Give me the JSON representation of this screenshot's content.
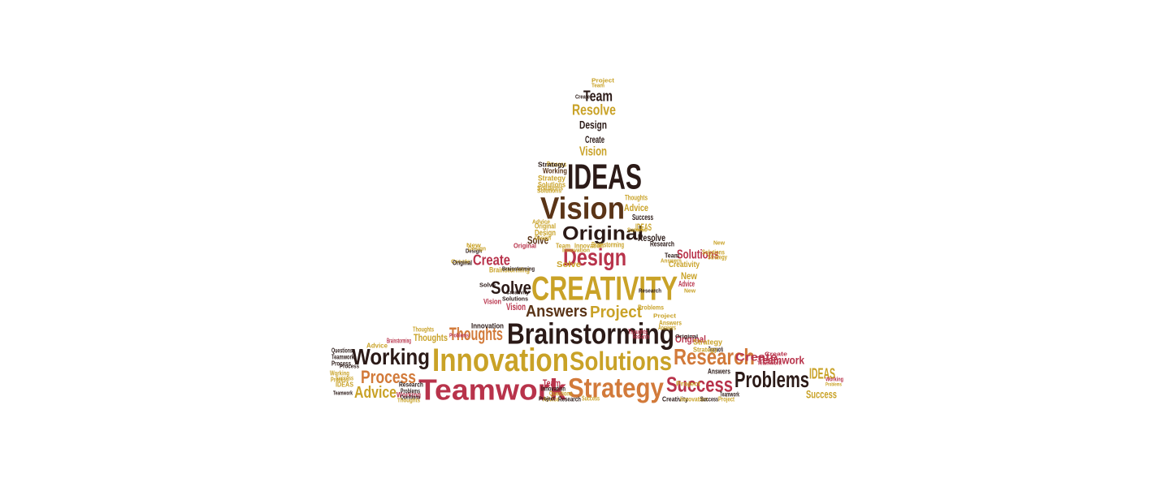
{
  "colors": {
    "dark": "#2b1a17",
    "brown": "#5a3417",
    "crimson": "#b8334b",
    "gold": "#c9a227",
    "orange": "#d27a3a",
    "red": "#c0392b"
  },
  "words": [
    {
      "text": "IDEAS",
      "color": "dark"
    },
    {
      "text": "Vision",
      "color": "brown"
    },
    {
      "text": "Original",
      "color": "dark"
    },
    {
      "text": "Design",
      "color": "crimson"
    },
    {
      "text": "CREATIVITY",
      "color": "gold"
    },
    {
      "text": "Answers",
      "color": "brown"
    },
    {
      "text": "Project",
      "color": "gold"
    },
    {
      "text": "Brainstorming",
      "color": "dark"
    },
    {
      "text": "Innovation",
      "color": "gold"
    },
    {
      "text": "Solutions",
      "color": "gold"
    },
    {
      "text": "Research",
      "color": "orange"
    },
    {
      "text": "Teamwork",
      "color": "crimson"
    },
    {
      "text": "Strategy",
      "color": "orange"
    },
    {
      "text": "Success",
      "color": "crimson"
    },
    {
      "text": "Problems",
      "color": "dark"
    },
    {
      "text": "Working",
      "color": "dark"
    },
    {
      "text": "Process",
      "color": "orange"
    },
    {
      "text": "Advice",
      "color": "gold"
    },
    {
      "text": "Thoughts",
      "color": "orange"
    },
    {
      "text": "Team",
      "color": "dark"
    },
    {
      "text": "Resolve",
      "color": "gold"
    },
    {
      "text": "Design",
      "color": "dark"
    },
    {
      "text": "Create",
      "color": "dark"
    },
    {
      "text": "Vision",
      "color": "gold"
    },
    {
      "text": "Create",
      "color": "crimson"
    },
    {
      "text": "Solve",
      "color": "brown"
    },
    {
      "text": "Solve",
      "color": "dark"
    },
    {
      "text": "Solutions",
      "color": "crimson"
    },
    {
      "text": "IDEAS",
      "color": "gold"
    },
    {
      "text": "Brainstorming",
      "color": "gold"
    },
    {
      "text": "Teamwork",
      "color": "crimson"
    },
    {
      "text": "IDEAS",
      "color": "gold"
    },
    {
      "text": "Success",
      "color": "gold"
    },
    {
      "text": "Innovation",
      "color": "dark"
    },
    {
      "text": "Thoughts",
      "color": "gold"
    },
    {
      "text": "Resolve",
      "color": "dark"
    },
    {
      "text": "Advice",
      "color": "gold"
    },
    {
      "text": "Success",
      "color": "dark"
    },
    {
      "text": "Original",
      "color": "crimson"
    },
    {
      "text": "New",
      "color": "gold"
    },
    {
      "text": "Advice",
      "color": "crimson"
    },
    {
      "text": "Working",
      "color": "brown"
    },
    {
      "text": "Strategy",
      "color": "gold"
    },
    {
      "text": "Solutions",
      "color": "gold"
    },
    {
      "text": "Process",
      "color": "gold"
    },
    {
      "text": "Thoughts",
      "color": "gold"
    },
    {
      "text": "Original",
      "color": "crimson"
    },
    {
      "text": "Design",
      "color": "gold"
    },
    {
      "text": "Creativity",
      "color": "gold"
    },
    {
      "text": "Research",
      "color": "dark"
    },
    {
      "text": "Brainstorming",
      "color": "gold"
    },
    {
      "text": "Create",
      "color": "crimson"
    },
    {
      "text": "Team",
      "color": "dark"
    },
    {
      "text": "Answers",
      "color": "dark"
    },
    {
      "text": "Strategy",
      "color": "gold"
    },
    {
      "text": "Original",
      "color": "gold"
    },
    {
      "text": "Solutions",
      "color": "gold"
    },
    {
      "text": "Team",
      "color": "crimson"
    },
    {
      "text": "Questions",
      "color": "dark"
    },
    {
      "text": "Teamwork",
      "color": "dark"
    },
    {
      "text": "Process",
      "color": "dark"
    },
    {
      "text": "Brainstorming",
      "color": "crimson"
    },
    {
      "text": "Success",
      "color": "gold"
    },
    {
      "text": "IDEAS",
      "color": "gold"
    },
    {
      "text": "Working",
      "color": "crimson"
    },
    {
      "text": "Creativity",
      "color": "dark"
    },
    {
      "text": "Innovation",
      "color": "gold"
    },
    {
      "text": "Success",
      "color": "dark"
    },
    {
      "text": "Project",
      "color": "gold"
    },
    {
      "text": "Teamwork",
      "color": "dark"
    },
    {
      "text": "Advice",
      "color": "gold"
    },
    {
      "text": "Research",
      "color": "dark"
    },
    {
      "text": "Innovation",
      "color": "dark"
    },
    {
      "text": "Questions",
      "color": "gold"
    },
    {
      "text": "Teamwork",
      "color": "dark"
    },
    {
      "text": "Problems",
      "color": "crimson"
    },
    {
      "text": "Problems",
      "color": "dark"
    },
    {
      "text": "Vision",
      "color": "crimson"
    },
    {
      "text": "Solutions",
      "color": "dark"
    },
    {
      "text": "Creativity",
      "color": "dark"
    },
    {
      "text": "Answers",
      "color": "gold"
    },
    {
      "text": "Thoughts",
      "color": "crimson"
    },
    {
      "text": "Research",
      "color": "crimson"
    },
    {
      "text": "Problems",
      "color": "gold"
    },
    {
      "text": "Answers",
      "color": "gold"
    },
    {
      "text": "Project",
      "color": "gold"
    },
    {
      "text": "Strategy",
      "color": "gold"
    },
    {
      "text": "Create",
      "color": "crimson"
    },
    {
      "text": "Solve",
      "color": "gold"
    },
    {
      "text": "Team",
      "color": "gold"
    },
    {
      "text": "Innovation",
      "color": "gold"
    },
    {
      "text": "Design",
      "color": "dark"
    },
    {
      "text": "Design",
      "color": "gold"
    },
    {
      "text": "Vision",
      "color": "crimson"
    },
    {
      "text": "New",
      "color": "gold"
    },
    {
      "text": "Solve",
      "color": "dark"
    },
    {
      "text": "Create",
      "color": "gold"
    },
    {
      "text": "Strategy",
      "color": "dark"
    },
    {
      "text": "Solutions",
      "color": "gold"
    },
    {
      "text": "Brainstorming",
      "color": "dark"
    },
    {
      "text": "Working",
      "color": "gold"
    },
    {
      "text": "Process",
      "color": "gold"
    },
    {
      "text": "Original",
      "color": "dark"
    },
    {
      "text": "Design",
      "color": "gold"
    },
    {
      "text": "Thoughts",
      "color": "gold"
    },
    {
      "text": "Advice",
      "color": "gold"
    },
    {
      "text": "Success",
      "color": "gold"
    },
    {
      "text": "Teamwork",
      "color": "crimson"
    },
    {
      "text": "Strategy",
      "color": "gold"
    },
    {
      "text": "New",
      "color": "gold"
    },
    {
      "text": "Solutions",
      "color": "gold"
    },
    {
      "text": "Project",
      "color": "gold"
    },
    {
      "text": "Team",
      "color": "gold"
    },
    {
      "text": "Create",
      "color": "dark"
    },
    {
      "text": "Success",
      "color": "gold"
    },
    {
      "text": "Problems",
      "color": "gold"
    },
    {
      "text": "Answers",
      "color": "gold"
    },
    {
      "text": "Project",
      "color": "gold"
    },
    {
      "text": "Working",
      "color": "crimson"
    },
    {
      "text": "Research",
      "color": "dark"
    },
    {
      "text": "Process",
      "color": "dark"
    },
    {
      "text": "Questions",
      "color": "dark"
    },
    {
      "text": "Project",
      "color": "dark"
    },
    {
      "text": "Thoughts",
      "color": "gold"
    },
    {
      "text": "Advice",
      "color": "gold"
    },
    {
      "text": "Innovation",
      "color": "gold"
    },
    {
      "text": "New",
      "color": "gold"
    },
    {
      "text": "Original",
      "color": "dark"
    },
    {
      "text": "Teamwork",
      "color": "dark"
    },
    {
      "text": "Research",
      "color": "dark"
    }
  ]
}
